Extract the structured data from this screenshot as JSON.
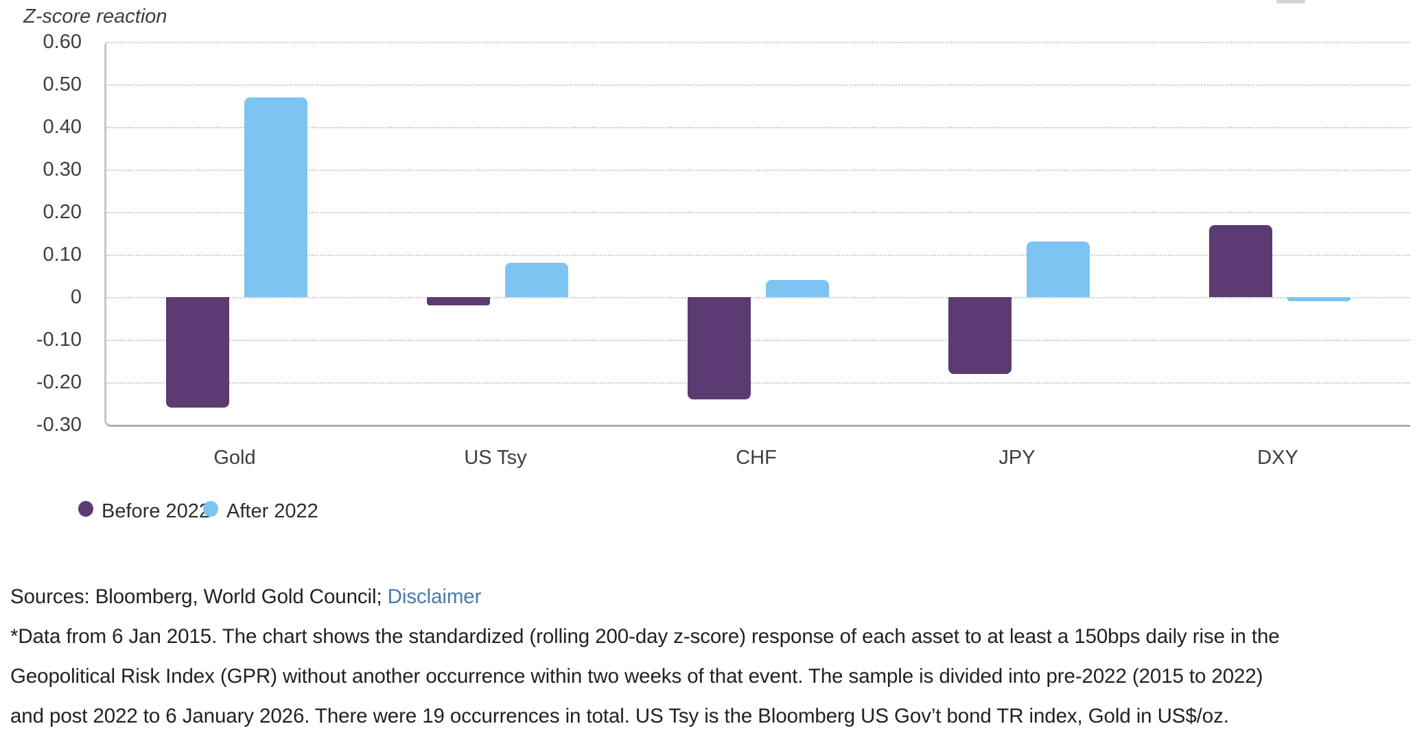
{
  "chart_data": {
    "type": "bar",
    "title": "Z-score reaction",
    "categories": [
      "Gold",
      "US Tsy",
      "CHF",
      "JPY",
      "DXY"
    ],
    "series": [
      {
        "name": "Before 2022",
        "color": "#5c3a72",
        "values": [
          -0.26,
          -0.02,
          -0.24,
          -0.18,
          0.17
        ]
      },
      {
        "name": "After 2022",
        "color": "#7cc4f2",
        "values": [
          0.47,
          0.08,
          0.04,
          0.13,
          -0.01
        ]
      }
    ],
    "ylim": [
      -0.3,
      0.6
    ],
    "ytick_labels": [
      "0.60",
      "0.50",
      "0.40",
      "0.30",
      "0.20",
      "0.10",
      "0",
      "-0.10",
      "-0.20",
      "-0.30"
    ],
    "grid": "horizontal dotted gridlines",
    "legend_position": "bottom-left"
  },
  "footer": {
    "sources_prefix": "Sources: Bloomberg, World Gold Council; ",
    "disclaimer_label": "Disclaimer",
    "footnote_lines": [
      "*Data from 6 Jan 2015. The chart shows the standardized (rolling 200-day z-score) response of each asset to at least a 150bps daily rise in the",
      "Geopolitical Risk Index (GPR) without another occurrence within two weeks of that event. The sample is divided into pre-2022 (2015 to 2022)",
      "and post 2022 to 6 January 2026. There were 19 occurrences in total. US Tsy is the Bloomberg US Gov’t bond TR index, Gold in US$/oz."
    ]
  },
  "colors": {
    "before_2022": "#5c3a72",
    "after_2022": "#7cc4f2",
    "gridline": "#c9c9c9",
    "axis": "#b0b0b0",
    "link": "#4a79ad",
    "text": "#3d3d3d"
  }
}
